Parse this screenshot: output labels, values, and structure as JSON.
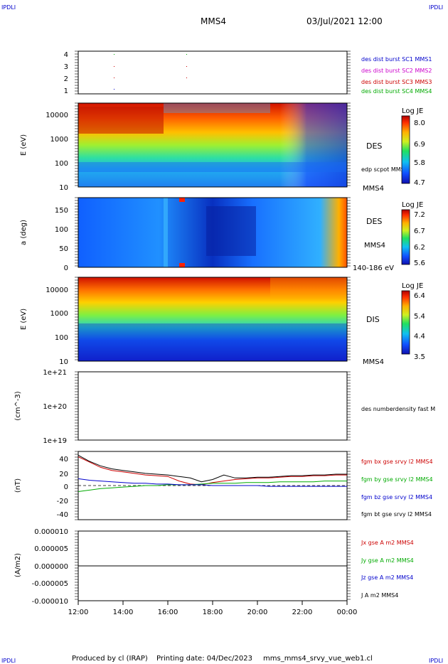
{
  "header": {
    "corner_tl": "IPDLI",
    "corner_tr": "IPDLI",
    "corner_bl": "IPDLI",
    "corner_br": "IPDLI",
    "spacecraft": "MMS4",
    "datetime": "03/Jul/2021 12:00"
  },
  "footer": {
    "producer": "Produced by cl (IRAP)",
    "print_date": "Printing date: 04/Dec/2023",
    "script": "mms_mms4_srvy_vue_web1.cl"
  },
  "colors": {
    "blue": "#0000cc",
    "magenta": "#cc00cc",
    "red": "#cc0000",
    "green": "#00aa00",
    "black": "#000000"
  },
  "x_axis": {
    "ticks": [
      "12:00",
      "14:00",
      "16:00",
      "18:00",
      "20:00",
      "22:00",
      "00:00"
    ],
    "range_hours": [
      12,
      24
    ]
  },
  "panels": {
    "burst": {
      "yticks": [
        "4",
        "3",
        "2",
        "1"
      ],
      "legend": [
        {
          "text": "des dist burst SC1 MMS1",
          "color": "#0000cc"
        },
        {
          "text": "des dist burst SC2 MMS2",
          "color": "#cc00cc"
        },
        {
          "text": "des dist burst SC3 MMS3",
          "color": "#cc0000"
        },
        {
          "text": "des dist burst SC4 MMS4",
          "color": "#00aa00"
        }
      ]
    },
    "des_energy": {
      "ylabel": "E (eV)",
      "yticks": [
        "10000",
        "1000",
        "100",
        "10"
      ],
      "right_label": "DES",
      "right_sub": "edp scpot MMS4",
      "right_bottom": "MMS4",
      "colorbar": {
        "title": "Log JE",
        "ticks": [
          "8.0",
          "6.9",
          "5.8",
          "4.7"
        ]
      }
    },
    "des_pitch": {
      "ylabel": "a (deg)",
      "yticks": [
        "150",
        "100",
        "50",
        "0"
      ],
      "right_label": "DES",
      "right_sub": "MMS4",
      "right_bottom": "140-186 eV",
      "colorbar": {
        "title": "Log JE",
        "ticks": [
          "7.2",
          "6.7",
          "6.2",
          "5.6"
        ]
      }
    },
    "dis_energy": {
      "ylabel": "E (eV)",
      "yticks": [
        "10000",
        "1000",
        "100",
        "10"
      ],
      "right_label": "DIS",
      "right_bottom": "MMS4",
      "colorbar": {
        "title": "Log JE",
        "ticks": [
          "6.4",
          "5.4",
          "4.4",
          "3.5"
        ]
      }
    },
    "density": {
      "ylabel": "(cm^-3)",
      "yticks": [
        "1e+21",
        "1e+20",
        "1e+19"
      ],
      "legend": "des numberdensity fast M"
    },
    "bfield": {
      "ylabel": "(nT)",
      "yticks": [
        "40",
        "20",
        "0",
        "-20",
        "-40"
      ],
      "legend": [
        {
          "text": "fgm bx gse srvy l2 MMS4",
          "color": "#cc0000"
        },
        {
          "text": "fgm by gse srvy l2 MMS4",
          "color": "#00aa00"
        },
        {
          "text": "fgm bz gse srvy l2 MMS4",
          "color": "#0000cc"
        },
        {
          "text": "fgm bt gse srvy l2 MMS4",
          "color": "#000000"
        }
      ]
    },
    "current": {
      "ylabel": "(A/m2)",
      "yticks": [
        "0.000010",
        "0.000005",
        "0.000000",
        "-0.000005",
        "-0.000010"
      ],
      "legend": [
        {
          "text": "Jx gse A m2 MMS4",
          "color": "#cc0000"
        },
        {
          "text": "Jy gse A m2 MMS4",
          "color": "#00aa00"
        },
        {
          "text": "Jz gse A m2 MMS4",
          "color": "#0000cc"
        },
        {
          "text": "J A m2 MMS4",
          "color": "#000000"
        }
      ]
    }
  },
  "chart_data": [
    {
      "type": "line",
      "name": "magnetic field",
      "x": [
        12,
        12.5,
        13,
        13.5,
        14,
        14.5,
        15,
        15.5,
        16,
        16.5,
        17,
        17.5,
        18,
        18.5,
        19,
        19.5,
        20,
        20.5,
        21,
        21.5,
        22,
        22.5,
        23,
        23.5,
        24
      ],
      "ylim": [
        -45,
        45
      ],
      "series": [
        {
          "name": "fgm bx gse srvy l2 MMS4",
          "color": "#cc0000",
          "values": [
            38,
            31,
            24,
            20,
            18,
            16,
            14,
            13,
            12,
            6,
            2,
            1,
            4,
            6,
            8,
            9,
            10,
            10,
            11,
            12,
            12,
            13,
            13,
            14,
            14
          ]
        },
        {
          "name": "fgm by gse srvy l2 MMS4",
          "color": "#00aa00",
          "values": [
            -8,
            -6,
            -4,
            -3,
            -2,
            -1,
            0,
            0,
            1,
            1,
            1,
            2,
            3,
            3,
            3,
            4,
            4,
            4,
            5,
            5,
            5,
            5,
            6,
            6,
            6
          ]
        },
        {
          "name": "fgm bz gse srvy l2 MMS4",
          "color": "#0000cc",
          "values": [
            9,
            7,
            6,
            5,
            4,
            3,
            3,
            2,
            2,
            1,
            1,
            1,
            0,
            0,
            0,
            0,
            0,
            -1,
            -1,
            -1,
            -1,
            -1,
            -1,
            -1,
            -1
          ]
        },
        {
          "name": "fgm bt gse srvy l2 MMS4",
          "color": "#000000",
          "values": [
            40,
            32,
            26,
            22,
            20,
            18,
            16,
            15,
            14,
            12,
            10,
            5,
            8,
            14,
            10,
            10,
            11,
            11,
            12,
            13,
            13,
            14,
            14,
            15,
            15
          ]
        }
      ]
    },
    {
      "type": "line",
      "name": "current density",
      "x": [
        12,
        24
      ],
      "ylim": [
        -1e-05,
        1e-05
      ],
      "series": [
        {
          "name": "J A m2 MMS4",
          "color": "#000000",
          "values": [
            0,
            0
          ]
        }
      ]
    }
  ]
}
